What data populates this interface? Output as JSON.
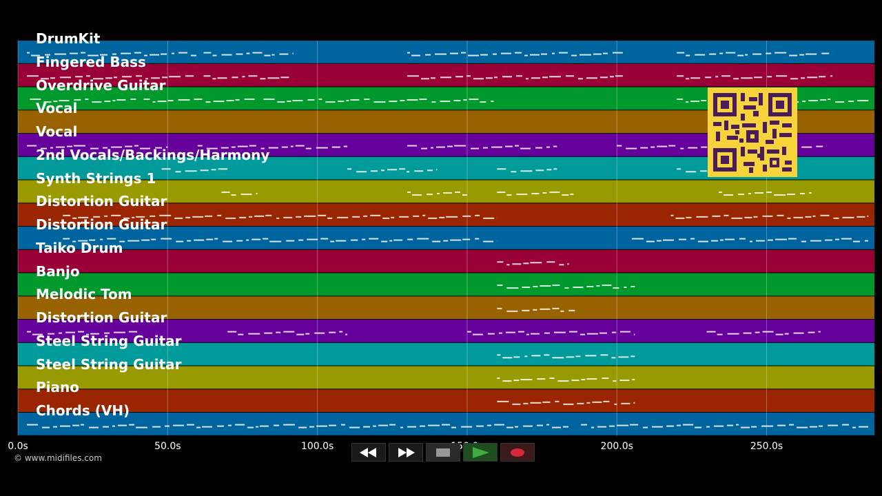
{
  "duration_s": 286,
  "tracks": [
    {
      "name": "DrumKit",
      "color": "#00649f"
    },
    {
      "name": "Fingered Bass",
      "color": "#980036"
    },
    {
      "name": "Overdrive Guitar",
      "color": "#009a2c"
    },
    {
      "name": "Vocal",
      "color": "#996200"
    },
    {
      "name": "Vocal",
      "color": "#66009a"
    },
    {
      "name": "2nd Vocals/Backings/Harmony",
      "color": "#009a9a"
    },
    {
      "name": "Synth Strings 1",
      "color": "#999900"
    },
    {
      "name": "Distortion Guitar",
      "color": "#992600"
    },
    {
      "name": "Distortion Guitar",
      "color": "#00649f"
    },
    {
      "name": "Taiko Drum",
      "color": "#980036"
    },
    {
      "name": "Banjo",
      "color": "#009a2c"
    },
    {
      "name": "Melodic Tom",
      "color": "#996200"
    },
    {
      "name": "Distortion Guitar",
      "color": "#66009a"
    },
    {
      "name": "Steel String Guitar",
      "color": "#009a9a"
    },
    {
      "name": "Steel String Guitar",
      "color": "#999900"
    },
    {
      "name": "Piano",
      "color": "#992600"
    },
    {
      "name": "Chords (VH)",
      "color": "#00649f"
    }
  ],
  "time_axis": {
    "ticks": [
      {
        "value": 0,
        "label": "0.0s"
      },
      {
        "value": 50,
        "label": "50.0s"
      },
      {
        "value": 100,
        "label": "100.0s"
      },
      {
        "value": 150,
        "label": "150.0s"
      },
      {
        "value": 200,
        "label": "200.0s"
      },
      {
        "value": 250,
        "label": "250.0s"
      }
    ]
  },
  "copyright": "© www.midifiles.com",
  "transport": {
    "rewind_icon": "rewind-icon",
    "forward_icon": "fast-forward-icon",
    "stop_icon": "stop-icon",
    "play_icon": "play-icon",
    "record_icon": "record-icon",
    "play_color": "#3fae3f",
    "record_color": "#d62a3a"
  },
  "qr_color": "#f7d43a"
}
